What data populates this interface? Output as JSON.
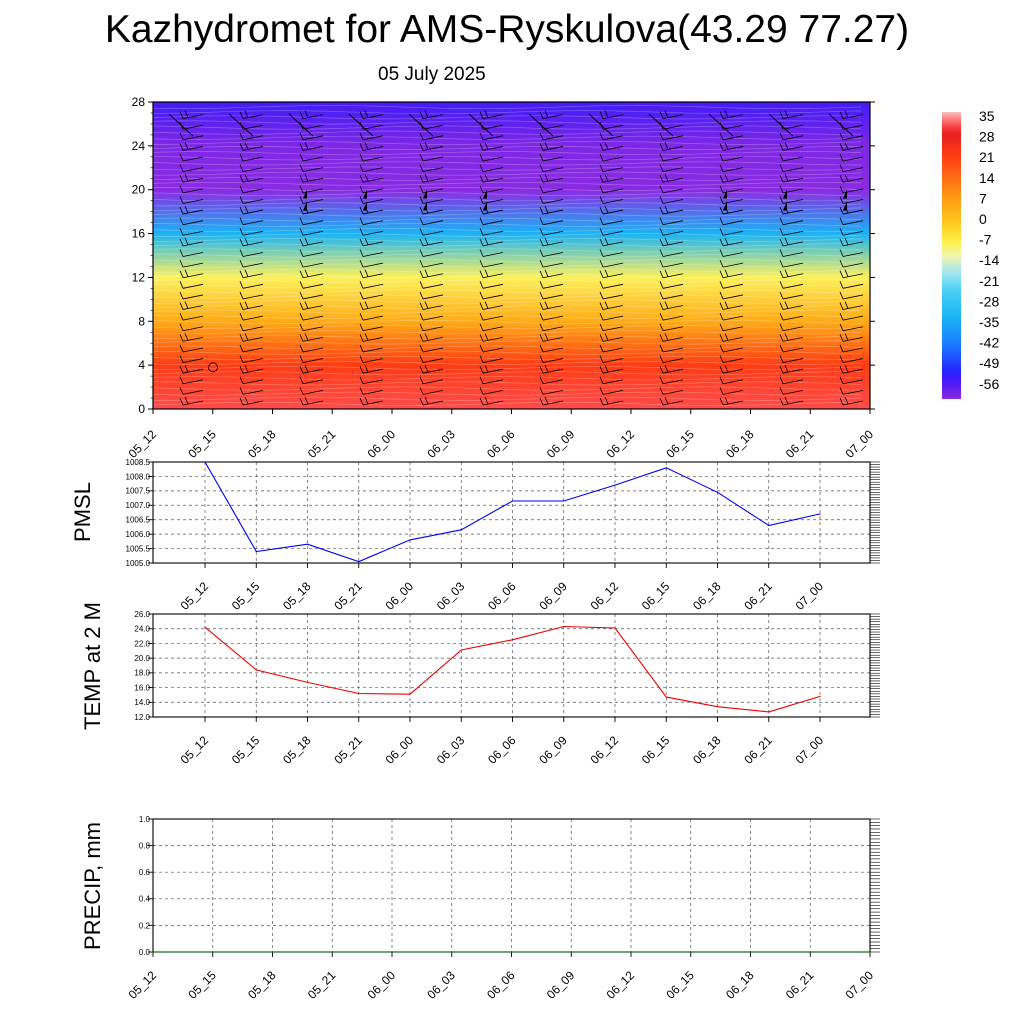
{
  "page": {
    "title": "Kazhydromet for AMS-Ryskulova(43.29 77.27)",
    "subtitle": "05 July 2025"
  },
  "chart_data": [
    {
      "id": "vertical-section",
      "type": "heatmap",
      "title": "",
      "xlabel": "",
      "ylabel": "",
      "x_categories": [
        "05_12",
        "05_15",
        "05_18",
        "05_21",
        "06_00",
        "06_03",
        "06_06",
        "06_09",
        "06_12",
        "06_15",
        "06_18",
        "06_21",
        "07_00"
      ],
      "y_ticks": [
        0,
        4,
        8,
        12,
        16,
        20,
        24,
        28
      ],
      "ylim": [
        0,
        28
      ],
      "colorbar_labels": [
        35,
        28,
        21,
        14,
        7,
        0,
        -7,
        -14,
        -21,
        -28,
        -35,
        -42,
        -49,
        -56
      ],
      "colorbar_range": [
        -56,
        35
      ],
      "temperature_profile": [
        {
          "height": 0,
          "value": 31
        },
        {
          "height": 4,
          "value": 21
        },
        {
          "height": 8,
          "value": 5
        },
        {
          "height": 12,
          "value": -7
        },
        {
          "height": 16,
          "value": -30
        },
        {
          "height": 20,
          "value": -58
        },
        {
          "height": 24,
          "value": -55
        },
        {
          "height": 28,
          "value": -50
        }
      ],
      "wind_barbs": "present",
      "grid": false
    },
    {
      "id": "pmsl",
      "type": "line",
      "ylabel": "PMSL",
      "x": [
        "05_12",
        "05_15",
        "05_18",
        "05_21",
        "06_00",
        "06_03",
        "06_06",
        "06_09",
        "06_12",
        "06_15",
        "06_18",
        "06_21",
        "07_00"
      ],
      "series": [
        {
          "values": [
            1008.5,
            1005.4,
            1005.65,
            1005.05,
            1005.8,
            1006.15,
            1007.15,
            1007.15,
            1007.7,
            1008.3,
            1007.45,
            1006.3,
            1006.7
          ]
        }
      ],
      "y_tick_labels": [
        "1005.0",
        "1005.5",
        "1006.0",
        "1006.5",
        "1007.0",
        "1007.5",
        "1008.0",
        "1008.5"
      ],
      "ylim": [
        1005.0,
        1008.5
      ],
      "line_color": "#0000ee",
      "grid": true
    },
    {
      "id": "temp2m",
      "type": "line",
      "ylabel": "TEMP at 2 M",
      "x": [
        "05_12",
        "05_15",
        "05_18",
        "05_21",
        "06_00",
        "06_03",
        "06_06",
        "06_09",
        "06_12",
        "06_15",
        "06_18",
        "06_21",
        "07_00"
      ],
      "series": [
        {
          "values": [
            24.2,
            18.4,
            16.7,
            15.2,
            15.1,
            21.1,
            22.5,
            24.3,
            24.1,
            14.7,
            13.4,
            12.7,
            14.8
          ]
        }
      ],
      "y_tick_labels": [
        "12.0",
        "14.0",
        "16.0",
        "18.0",
        "20.0",
        "22.0",
        "24.0",
        "26.0"
      ],
      "ylim": [
        12,
        26
      ],
      "line_color": "#ee0000",
      "grid": true
    },
    {
      "id": "precip",
      "type": "line",
      "ylabel": "PRECIP, mm",
      "x": [
        "05_12",
        "05_15",
        "05_18",
        "05_21",
        "06_00",
        "06_03",
        "06_06",
        "06_09",
        "06_12",
        "06_15",
        "06_18",
        "06_21",
        "07_00"
      ],
      "series": [
        {
          "values": [
            0,
            0,
            0,
            0,
            0,
            0,
            0,
            0,
            0,
            0,
            0,
            0,
            0
          ]
        }
      ],
      "y_tick_labels": [
        "0.0",
        "0.2",
        "0.4",
        "0.6",
        "0.8",
        "1.0"
      ],
      "ylim": [
        0,
        1
      ],
      "line_color": "#006400",
      "grid": true
    }
  ]
}
